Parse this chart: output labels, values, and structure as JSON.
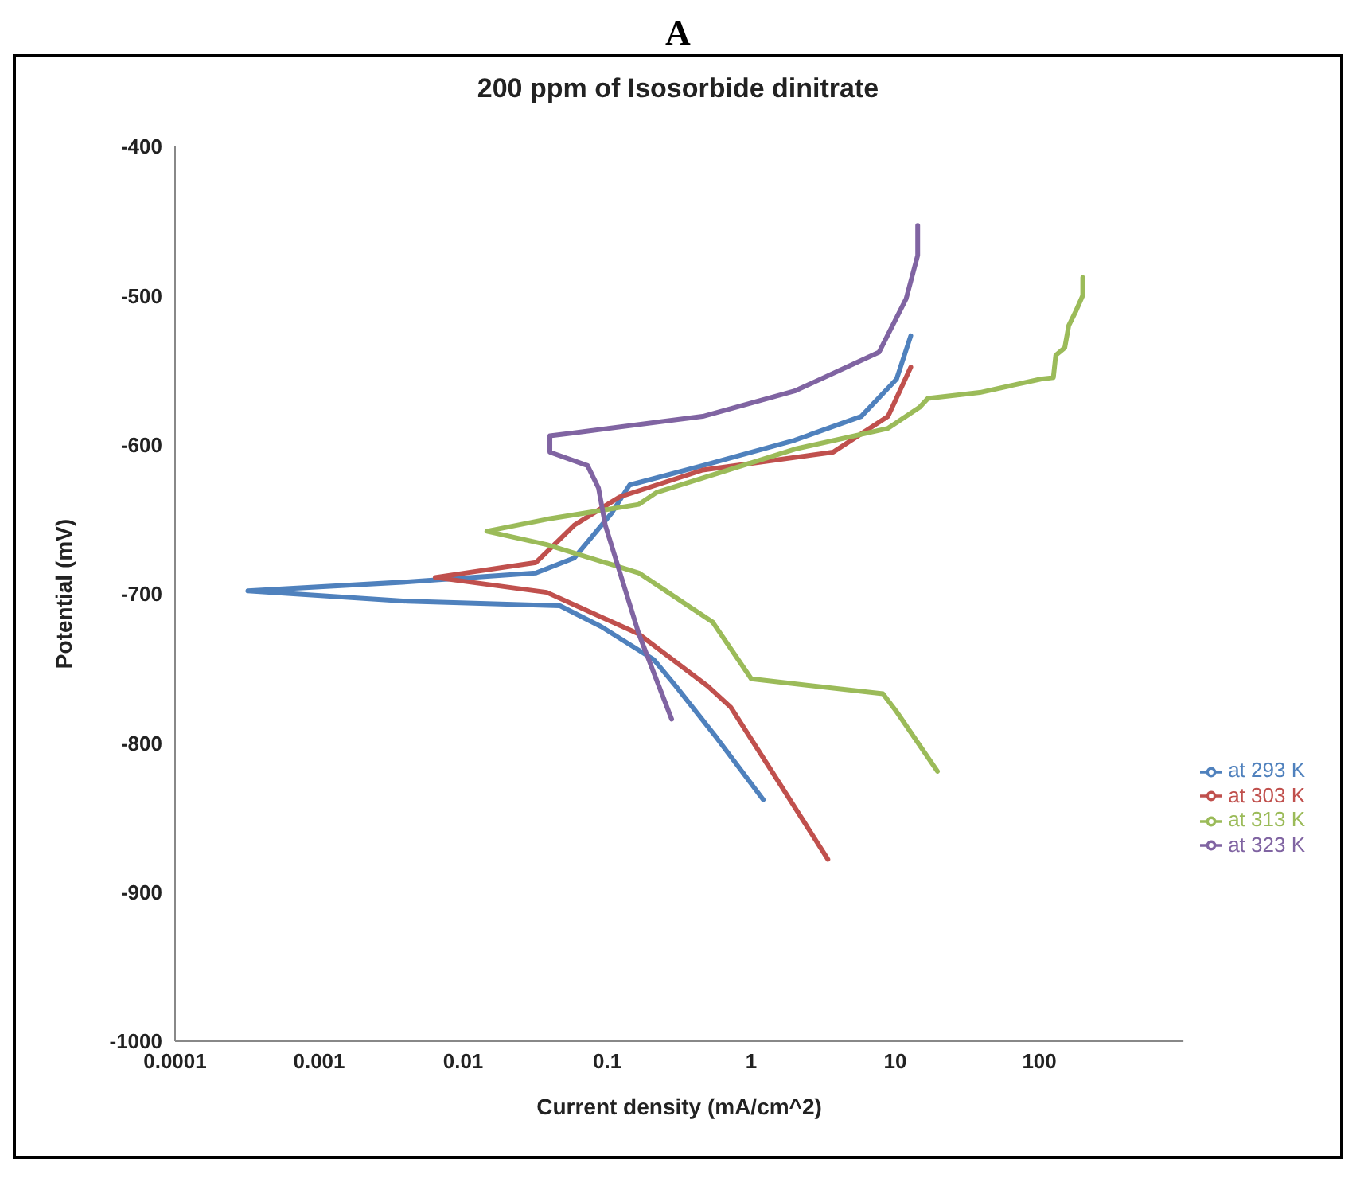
{
  "chart_data": {
    "type": "line",
    "title": "200 ppm of Isosorbide dinitrate",
    "annotations": [
      "A"
    ],
    "xlabel": "Current density (mA/cm^2)",
    "ylabel": "Potential (mV)",
    "log": "x",
    "xlim": [
      0.0001,
      1000
    ],
    "xticks": [
      0.0001,
      0.001,
      0.01,
      0.1,
      1,
      10,
      100
    ],
    "ylim": [
      -1000,
      -400
    ],
    "yticks": [
      -1000,
      -900,
      -800,
      -700,
      -600,
      -500,
      -400
    ],
    "grid": false,
    "legend": "right",
    "marker": "none",
    "line_style": "solid",
    "series": [
      {
        "name": "at 293 K",
        "color": "#4f81bd",
        "x": [
          1.21,
          0.58,
          0.3,
          0.21,
          0.091,
          0.047,
          0.0041,
          0.00032,
          0.0041,
          0.032,
          0.059,
          0.107,
          0.143,
          0.46,
          2.0,
          5.8,
          10.2,
          12.8
        ],
        "values": [
          -838,
          -797,
          -762,
          -744,
          -722,
          -708,
          -705,
          -698,
          -692,
          -686,
          -676,
          -646,
          -627,
          -614,
          -597,
          -581,
          -556,
          -527
        ]
      },
      {
        "name": "at 303 K",
        "color": "#c0504d",
        "x": [
          3.4,
          1.5,
          0.72,
          0.5,
          0.166,
          0.038,
          0.0064,
          0.032,
          0.059,
          0.122,
          0.46,
          3.7,
          8.9,
          12.8
        ],
        "values": [
          -878,
          -824,
          -776,
          -762,
          -727,
          -699,
          -689,
          -679,
          -654,
          -635,
          -617,
          -605,
          -581,
          -548
        ]
      },
      {
        "name": "at 313 K",
        "color": "#9bbb59",
        "x": [
          19.6,
          10.2,
          8.2,
          1.0,
          0.54,
          0.166,
          0.038,
          0.0146,
          0.038,
          0.166,
          0.22,
          2.0,
          8.9,
          14.7,
          16.8,
          38.6,
          102,
          125,
          130,
          150,
          160,
          180,
          200,
          200
        ],
        "values": [
          -819,
          -779,
          -767,
          -757,
          -719,
          -686,
          -667,
          -658,
          -650,
          -640,
          -632,
          -603,
          -589,
          -575,
          -569,
          -565,
          -556,
          -555,
          -540,
          -535,
          -520,
          -510,
          -500,
          -488
        ]
      },
      {
        "name": "at 323 K",
        "color": "#8064a2",
        "x": [
          0.28,
          0.166,
          0.097,
          0.087,
          0.073,
          0.04,
          0.04,
          0.059,
          0.46,
          2.0,
          7.7,
          11.9,
          14.3,
          14.3
        ],
        "values": [
          -784,
          -727,
          -654,
          -629,
          -614,
          -605,
          -594,
          -592,
          -581,
          -564,
          -538,
          -502,
          -473,
          -453
        ]
      }
    ]
  }
}
